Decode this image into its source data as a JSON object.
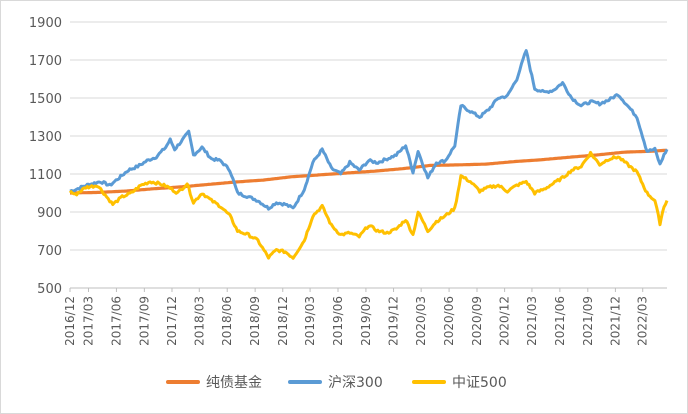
{
  "chart_data": {
    "type": "line",
    "ylim": [
      500,
      1900
    ],
    "y_ticks": [
      "500",
      "700",
      "900",
      "1100",
      "1300",
      "1500",
      "1700",
      "1900"
    ],
    "x_ticks": [
      "2016/12",
      "2017/03",
      "2017/06",
      "2017/09",
      "2017/12",
      "2018/03",
      "2018/06",
      "2018/09",
      "2018/12",
      "2019/03",
      "2019/06",
      "2019/09",
      "2019/12",
      "2020/03",
      "2020/06",
      "2020/09",
      "2020/12",
      "2021/03",
      "2021/06",
      "2021/09",
      "2021/12",
      "2022/03"
    ],
    "x_range": [
      "2016-12-30",
      "2022-05-20"
    ],
    "grid": "horizontal",
    "legend_position": "bottom",
    "series": [
      {
        "name": "纯债基金",
        "color": "#ED7D31",
        "points": [
          [
            "2016-12-30",
            1000
          ],
          [
            "2017-03-31",
            1003
          ],
          [
            "2017-06-30",
            1010
          ],
          [
            "2017-09-29",
            1022
          ],
          [
            "2017-12-29",
            1032
          ],
          [
            "2018-03-30",
            1045
          ],
          [
            "2018-06-29",
            1058
          ],
          [
            "2018-09-28",
            1068
          ],
          [
            "2018-12-28",
            1085
          ],
          [
            "2019-03-29",
            1095
          ],
          [
            "2019-06-28",
            1105
          ],
          [
            "2019-09-30",
            1115
          ],
          [
            "2019-12-31",
            1128
          ],
          [
            "2020-03-31",
            1145
          ],
          [
            "2020-06-30",
            1148
          ],
          [
            "2020-09-30",
            1152
          ],
          [
            "2020-12-31",
            1165
          ],
          [
            "2021-03-31",
            1175
          ],
          [
            "2021-06-30",
            1188
          ],
          [
            "2021-09-30",
            1200
          ],
          [
            "2021-12-31",
            1215
          ],
          [
            "2022-03-31",
            1220
          ],
          [
            "2022-05-20",
            1225
          ]
        ]
      },
      {
        "name": "沪深300",
        "color": "#5B9BD5",
        "points": [
          [
            "2016-12-30",
            1010
          ],
          [
            "2017-01-20",
            1020
          ],
          [
            "2017-02-20",
            1040
          ],
          [
            "2017-03-15",
            1050
          ],
          [
            "2017-04-10",
            1060
          ],
          [
            "2017-05-10",
            1040
          ],
          [
            "2017-06-10",
            1080
          ],
          [
            "2017-07-10",
            1120
          ],
          [
            "2017-08-10",
            1140
          ],
          [
            "2017-09-10",
            1170
          ],
          [
            "2017-10-10",
            1190
          ],
          [
            "2017-11-10",
            1240
          ],
          [
            "2017-11-25",
            1280
          ],
          [
            "2017-12-10",
            1230
          ],
          [
            "2018-01-10",
            1290
          ],
          [
            "2018-01-25",
            1320
          ],
          [
            "2018-02-10",
            1200
          ],
          [
            "2018-03-10",
            1240
          ],
          [
            "2018-04-10",
            1180
          ],
          [
            "2018-05-10",
            1170
          ],
          [
            "2018-06-10",
            1120
          ],
          [
            "2018-07-05",
            1000
          ],
          [
            "2018-08-10",
            980
          ],
          [
            "2018-09-10",
            960
          ],
          [
            "2018-10-15",
            920
          ],
          [
            "2018-11-10",
            950
          ],
          [
            "2018-12-10",
            940
          ],
          [
            "2019-01-04",
            920
          ],
          [
            "2019-02-10",
            1020
          ],
          [
            "2019-03-10",
            1160
          ],
          [
            "2019-04-10",
            1230
          ],
          [
            "2019-05-10",
            1130
          ],
          [
            "2019-06-10",
            1100
          ],
          [
            "2019-07-10",
            1160
          ],
          [
            "2019-08-10",
            1120
          ],
          [
            "2019-09-10",
            1170
          ],
          [
            "2019-10-10",
            1160
          ],
          [
            "2019-11-10",
            1180
          ],
          [
            "2019-12-10",
            1200
          ],
          [
            "2020-01-10",
            1250
          ],
          [
            "2020-02-03",
            1110
          ],
          [
            "2020-02-20",
            1220
          ],
          [
            "2020-03-23",
            1080
          ],
          [
            "2020-04-20",
            1160
          ],
          [
            "2020-05-20",
            1170
          ],
          [
            "2020-06-20",
            1250
          ],
          [
            "2020-07-10",
            1460
          ],
          [
            "2020-08-10",
            1430
          ],
          [
            "2020-09-10",
            1400
          ],
          [
            "2020-10-10",
            1440
          ],
          [
            "2020-11-10",
            1500
          ],
          [
            "2020-12-10",
            1510
          ],
          [
            "2021-01-10",
            1600
          ],
          [
            "2021-02-10",
            1750
          ],
          [
            "2021-03-10",
            1550
          ],
          [
            "2021-04-10",
            1530
          ],
          [
            "2021-05-10",
            1540
          ],
          [
            "2021-06-10",
            1580
          ],
          [
            "2021-07-10",
            1500
          ],
          [
            "2021-08-10",
            1460
          ],
          [
            "2021-09-10",
            1480
          ],
          [
            "2021-10-10",
            1470
          ],
          [
            "2021-11-10",
            1490
          ],
          [
            "2021-12-10",
            1520
          ],
          [
            "2022-01-10",
            1460
          ],
          [
            "2022-02-10",
            1400
          ],
          [
            "2022-03-15",
            1220
          ],
          [
            "2022-04-10",
            1230
          ],
          [
            "2022-04-27",
            1150
          ],
          [
            "2022-05-10",
            1200
          ],
          [
            "2022-05-20",
            1230
          ]
        ]
      },
      {
        "name": "中证500",
        "color": "#FFC000",
        "points": [
          [
            "2016-12-30",
            1010
          ],
          [
            "2017-01-16",
            990
          ],
          [
            "2017-02-20",
            1030
          ],
          [
            "2017-03-31",
            1040
          ],
          [
            "2017-04-20",
            1000
          ],
          [
            "2017-05-20",
            940
          ],
          [
            "2017-06-20",
            980
          ],
          [
            "2017-07-20",
            1000
          ],
          [
            "2017-08-20",
            1040
          ],
          [
            "2017-09-20",
            1060
          ],
          [
            "2017-10-20",
            1050
          ],
          [
            "2017-11-20",
            1030
          ],
          [
            "2017-12-20",
            1000
          ],
          [
            "2018-01-20",
            1050
          ],
          [
            "2018-02-10",
            950
          ],
          [
            "2018-03-10",
            1000
          ],
          [
            "2018-04-10",
            960
          ],
          [
            "2018-05-10",
            930
          ],
          [
            "2018-06-10",
            880
          ],
          [
            "2018-07-05",
            800
          ],
          [
            "2018-08-10",
            780
          ],
          [
            "2018-09-10",
            750
          ],
          [
            "2018-10-15",
            660
          ],
          [
            "2018-11-10",
            700
          ],
          [
            "2018-12-10",
            690
          ],
          [
            "2019-01-04",
            660
          ],
          [
            "2019-02-10",
            750
          ],
          [
            "2019-03-10",
            880
          ],
          [
            "2019-04-10",
            930
          ],
          [
            "2019-05-10",
            830
          ],
          [
            "2019-06-10",
            780
          ],
          [
            "2019-07-10",
            790
          ],
          [
            "2019-08-10",
            770
          ],
          [
            "2019-09-10",
            830
          ],
          [
            "2019-10-10",
            800
          ],
          [
            "2019-11-10",
            790
          ],
          [
            "2019-12-10",
            810
          ],
          [
            "2020-01-10",
            860
          ],
          [
            "2020-02-03",
            780
          ],
          [
            "2020-02-20",
            900
          ],
          [
            "2020-03-23",
            800
          ],
          [
            "2020-04-20",
            850
          ],
          [
            "2020-05-20",
            880
          ],
          [
            "2020-06-20",
            920
          ],
          [
            "2020-07-10",
            1090
          ],
          [
            "2020-08-10",
            1060
          ],
          [
            "2020-09-10",
            1010
          ],
          [
            "2020-10-10",
            1030
          ],
          [
            "2020-11-10",
            1040
          ],
          [
            "2020-12-10",
            1010
          ],
          [
            "2021-01-10",
            1040
          ],
          [
            "2021-02-10",
            1060
          ],
          [
            "2021-03-10",
            1000
          ],
          [
            "2021-04-10",
            1020
          ],
          [
            "2021-05-10",
            1050
          ],
          [
            "2021-06-10",
            1080
          ],
          [
            "2021-07-10",
            1120
          ],
          [
            "2021-08-10",
            1140
          ],
          [
            "2021-09-10",
            1210
          ],
          [
            "2021-10-10",
            1150
          ],
          [
            "2021-11-10",
            1180
          ],
          [
            "2021-12-10",
            1190
          ],
          [
            "2022-01-10",
            1150
          ],
          [
            "2022-02-10",
            1110
          ],
          [
            "2022-03-15",
            1000
          ],
          [
            "2022-04-10",
            960
          ],
          [
            "2022-04-27",
            840
          ],
          [
            "2022-05-10",
            930
          ],
          [
            "2022-05-20",
            960
          ]
        ]
      }
    ]
  }
}
